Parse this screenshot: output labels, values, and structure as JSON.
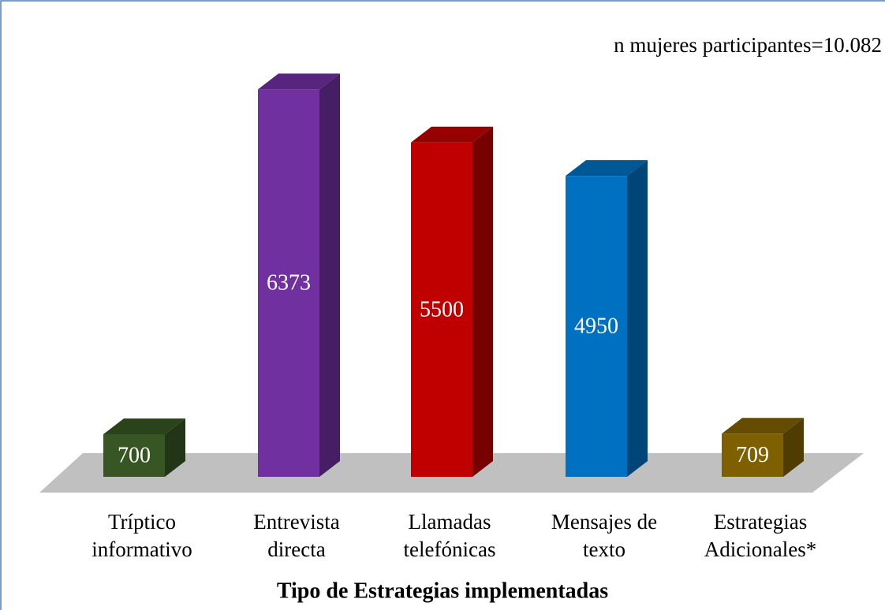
{
  "chart_data": {
    "type": "bar",
    "annotation": "n mujeres participantes=10.082",
    "x_label": "Tipo de Estrategias implementadas",
    "categories": [
      [
        "Tríptico",
        "informativo"
      ],
      [
        "Entrevista",
        "directa"
      ],
      [
        "Llamadas",
        "telefónicas"
      ],
      [
        "Mensajes de",
        "texto"
      ],
      [
        "Estrategias",
        "Adicionales*"
      ]
    ],
    "values": [
      700,
      6373,
      5500,
      4950,
      709
    ],
    "colors": [
      "#375623",
      "#7030a0",
      "#c00000",
      "#0070c0",
      "#7f6000"
    ],
    "ylim": [
      0,
      7000
    ]
  }
}
